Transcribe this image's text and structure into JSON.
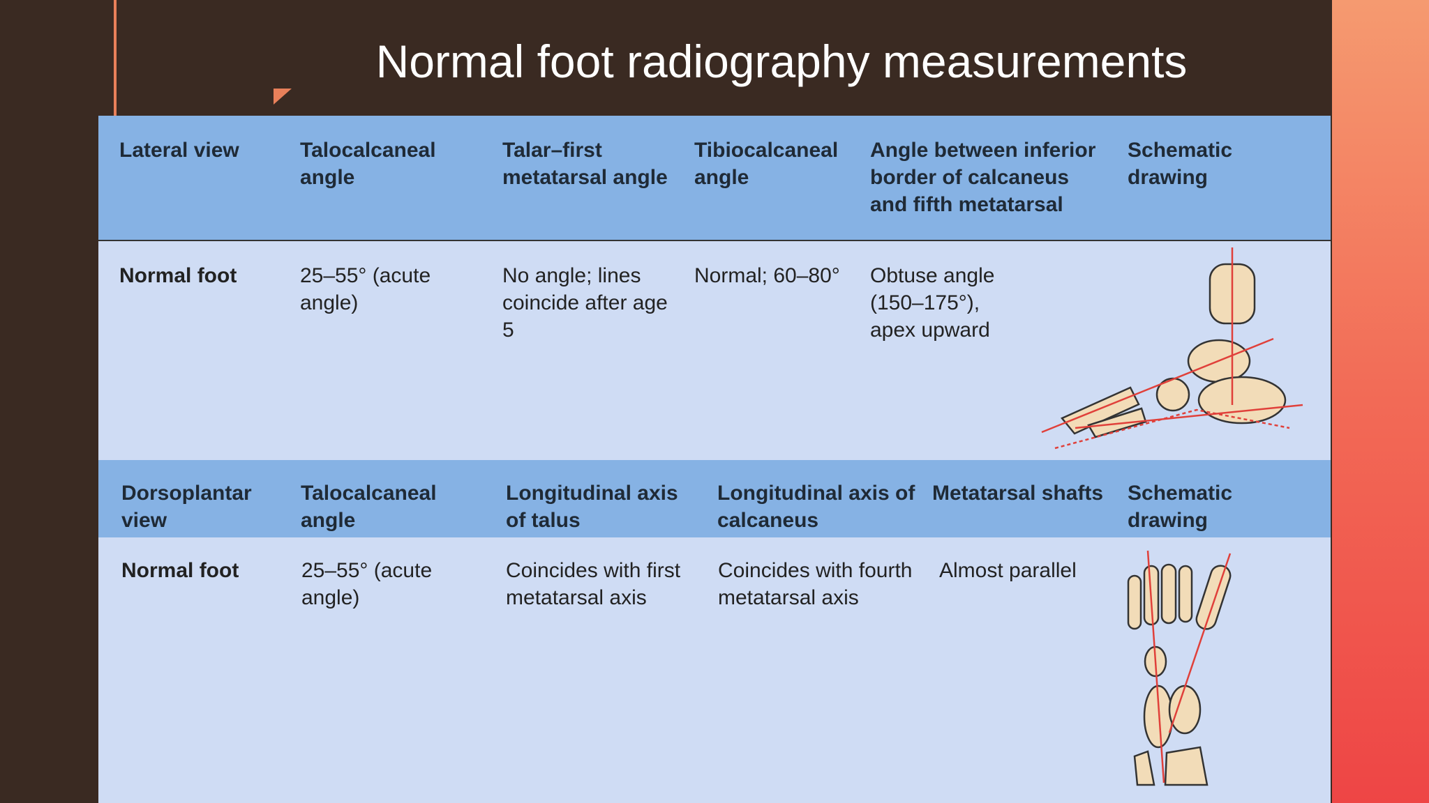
{
  "title": "Normal foot radiography measurements",
  "sections": [
    {
      "header": [
        "Lateral view",
        "Talocalcaneal angle",
        "Talar–first metatarsal angle",
        "Tibiocalcaneal angle",
        "Angle between inferior border of calcaneus and fifth metatarsal",
        "Schematic drawing"
      ],
      "row": [
        "Normal foot",
        "25–55° (acute angle)",
        "No angle; lines coincide after age 5",
        "Normal; 60–80°",
        "Obtuse angle (150–175°), apex upward"
      ]
    },
    {
      "header": [
        "Dorsoplantar view",
        "Talocalcaneal angle",
        "Longitudinal axis of talus",
        "Longitudinal axis of calcaneus",
        "Metatarsal shafts",
        "Schematic drawing"
      ],
      "row": [
        "Normal foot",
        "25–55° (acute angle)",
        "Coincides with first metatarsal axis",
        "Coincides with fourth metatarsal axis",
        "Almost parallel"
      ]
    }
  ]
}
